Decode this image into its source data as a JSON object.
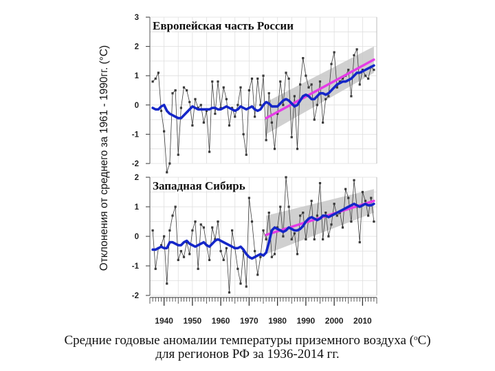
{
  "y_axis_label": "Отклонения от среднего за 1961 - 1990гг. (°C)",
  "caption": {
    "line1_before": "Средние годовые аномалии температуры приземного воздуха (",
    "degree": "o",
    "line1_after": "C)",
    "line2": "для регионов РФ за 1936-2014 гг."
  },
  "colors": {
    "anomaly_line": "#3a3a3a",
    "smoothed": "#1426c8",
    "trend": "#e53ce6",
    "confidence_band": "#c8c8c8",
    "grid": "#dedede"
  },
  "chart_data": [
    {
      "type": "line",
      "title": "Европейская часть России",
      "xlabel": "",
      "ylabel": "Отклонения от среднего за 1961 - 1990гг. (°C)",
      "xlim": [
        1935,
        2015
      ],
      "ylim": [
        -2,
        3
      ],
      "y_ticks": [
        -2,
        -1,
        0,
        1,
        2,
        3
      ],
      "y_tick_labels": [
        "-2",
        "-1",
        "0",
        "1",
        "2",
        "3"
      ],
      "x": [
        1936,
        1937,
        1938,
        1939,
        1940,
        1941,
        1942,
        1943,
        1944,
        1945,
        1946,
        1947,
        1948,
        1949,
        1950,
        1951,
        1952,
        1953,
        1954,
        1955,
        1956,
        1957,
        1958,
        1959,
        1960,
        1961,
        1962,
        1963,
        1964,
        1965,
        1966,
        1967,
        1968,
        1969,
        1970,
        1971,
        1972,
        1973,
        1974,
        1975,
        1976,
        1977,
        1978,
        1979,
        1980,
        1981,
        1982,
        1983,
        1984,
        1985,
        1986,
        1987,
        1988,
        1989,
        1990,
        1991,
        1992,
        1993,
        1994,
        1995,
        1996,
        1997,
        1998,
        1999,
        2000,
        2001,
        2002,
        2003,
        2004,
        2005,
        2006,
        2007,
        2008,
        2009,
        2010,
        2011,
        2012,
        2013,
        2014
      ],
      "series": [
        {
          "name": "annual_anomaly",
          "values": [
            0.8,
            0.9,
            1.1,
            -0.2,
            -0.9,
            -2.3,
            -2.0,
            0.4,
            0.5,
            -1.7,
            -0.1,
            0.6,
            0.5,
            0.1,
            -0.7,
            0.2,
            -0.1,
            0.0,
            -0.6,
            -0.2,
            -1.6,
            0.8,
            -0.3,
            0.8,
            -0.1,
            0.6,
            0.2,
            -0.7,
            -0.1,
            -0.4,
            0.0,
            0.6,
            -1.0,
            -1.7,
            0.5,
            0.9,
            -0.4,
            0.9,
            0.0,
            1.0,
            -1.2,
            0.4,
            -0.6,
            -1.5,
            -0.3,
            0.8,
            0.0,
            1.1,
            0.9,
            -1.1,
            0.3,
            -1.5,
            0.7,
            1.6,
            1.0,
            0.6,
            0.7,
            -0.5,
            0.0,
            0.8,
            -0.6,
            0.2,
            0.3,
            1.4,
            1.8,
            0.6,
            0.8,
            0.9,
            1.0,
            1.2,
            0.3,
            1.7,
            1.9,
            0.7,
            1.2,
            1.0,
            0.9,
            1.3,
            1.2
          ]
        },
        {
          "name": "smoothed",
          "values": [
            -0.1,
            -0.15,
            -0.15,
            -0.05,
            0.0,
            -0.2,
            -0.3,
            -0.35,
            -0.4,
            -0.45,
            -0.45,
            -0.35,
            -0.25,
            -0.15,
            -0.05,
            -0.1,
            -0.15,
            -0.15,
            -0.15,
            -0.15,
            -0.15,
            -0.1,
            -0.1,
            -0.15,
            -0.15,
            -0.1,
            -0.05,
            -0.1,
            -0.15,
            -0.2,
            -0.15,
            -0.05,
            -0.1,
            -0.15,
            -0.1,
            -0.05,
            -0.15,
            -0.2,
            -0.15,
            0.0,
            0.1,
            0.05,
            -0.05,
            -0.05,
            -0.05,
            0.05,
            0.15,
            0.2,
            0.15,
            0.05,
            -0.05,
            0.0,
            0.15,
            0.3,
            0.35,
            0.3,
            0.2,
            0.2,
            0.3,
            0.4,
            0.4,
            0.35,
            0.4,
            0.5,
            0.6,
            0.7,
            0.75,
            0.8,
            0.8,
            0.85,
            0.9,
            1.0,
            1.1,
            1.1,
            1.15,
            1.2,
            1.25,
            1.3,
            1.35
          ]
        },
        {
          "name": "linear_trend",
          "x": [
            1976,
            2014
          ],
          "values": [
            -0.45,
            1.55
          ]
        },
        {
          "name": "confidence_band",
          "x": [
            1976,
            2014
          ],
          "upper": [
            0.1,
            2.0
          ],
          "lower": [
            -1.0,
            1.1
          ]
        }
      ]
    },
    {
      "type": "line",
      "title": "Западная Сибирь",
      "xlabel": "",
      "ylabel": "Отклонения от среднего за 1961 - 1990гг. (°C)",
      "xlim": [
        1935,
        2015
      ],
      "ylim": [
        -2,
        2
      ],
      "y_ticks": [
        -2,
        -1,
        0,
        1,
        2
      ],
      "y_tick_labels": [
        "-2",
        "-1",
        "0",
        "1",
        "2"
      ],
      "x_ticks": [
        1940,
        1950,
        1960,
        1970,
        1980,
        1990,
        2000,
        2010
      ],
      "x_tick_labels": [
        "1940",
        "1950",
        "1960",
        "1970",
        "1980",
        "1990",
        "2000",
        "2010"
      ],
      "x": [
        1936,
        1937,
        1938,
        1939,
        1940,
        1941,
        1942,
        1943,
        1944,
        1945,
        1946,
        1947,
        1948,
        1949,
        1950,
        1951,
        1952,
        1953,
        1954,
        1955,
        1956,
        1957,
        1958,
        1959,
        1960,
        1961,
        1962,
        1963,
        1964,
        1965,
        1966,
        1967,
        1968,
        1969,
        1970,
        1971,
        1972,
        1973,
        1974,
        1975,
        1976,
        1977,
        1978,
        1979,
        1980,
        1981,
        1982,
        1983,
        1984,
        1985,
        1986,
        1987,
        1988,
        1989,
        1990,
        1991,
        1992,
        1993,
        1994,
        1995,
        1996,
        1997,
        1998,
        1999,
        2000,
        2001,
        2002,
        2003,
        2004,
        2005,
        2006,
        2007,
        2008,
        2009,
        2010,
        2011,
        2012,
        2013,
        2014
      ],
      "series": [
        {
          "name": "annual_anomaly",
          "values": [
            0.2,
            -1.1,
            -0.4,
            -0.3,
            0.0,
            -1.6,
            0.2,
            0.7,
            1.0,
            -0.8,
            -0.5,
            -0.7,
            -0.2,
            -0.6,
            0.2,
            0.5,
            -1.1,
            0.4,
            0.3,
            -0.3,
            -0.8,
            0.3,
            -0.1,
            0.5,
            -0.5,
            -0.8,
            -0.4,
            -1.9,
            0.2,
            -0.4,
            -1.1,
            -1.6,
            -0.5,
            -1.7,
            1.3,
            0.5,
            -0.5,
            -1.3,
            -0.7,
            0.2,
            -0.1,
            0.8,
            -0.7,
            -0.6,
            0.3,
            1.0,
            0.0,
            2.0,
            1.0,
            -0.1,
            0.1,
            -0.6,
            0.7,
            0.8,
            -0.1,
            0.6,
            1.2,
            -0.1,
            0.7,
            1.8,
            -0.1,
            0.8,
            0.0,
            0.4,
            1.1,
            0.7,
            0.8,
            0.3,
            1.6,
            1.3,
            0.5,
            1.9,
            1.0,
            -0.2,
            1.5,
            1.2,
            0.7,
            1.3,
            0.5
          ]
        },
        {
          "name": "smoothed",
          "values": [
            -0.45,
            -0.45,
            -0.4,
            -0.35,
            -0.4,
            -0.4,
            -0.2,
            -0.2,
            -0.25,
            -0.3,
            -0.3,
            -0.2,
            -0.15,
            -0.25,
            -0.3,
            -0.35,
            -0.3,
            -0.25,
            -0.2,
            -0.3,
            -0.35,
            -0.25,
            -0.15,
            -0.1,
            -0.15,
            -0.2,
            -0.25,
            -0.3,
            -0.35,
            -0.4,
            -0.4,
            -0.35,
            -0.45,
            -0.6,
            -0.7,
            -0.75,
            -0.7,
            -0.65,
            -0.6,
            -0.65,
            -0.55,
            -0.2,
            0.2,
            0.3,
            0.25,
            0.2,
            0.15,
            0.2,
            0.3,
            0.25,
            0.2,
            0.2,
            0.25,
            0.35,
            0.5,
            0.6,
            0.65,
            0.6,
            0.55,
            0.6,
            0.7,
            0.7,
            0.65,
            0.7,
            0.75,
            0.8,
            0.85,
            0.9,
            0.95,
            1.0,
            1.05,
            1.1,
            1.05,
            1.0,
            1.05,
            1.1,
            1.05,
            1.05,
            1.1
          ]
        },
        {
          "name": "linear_trend",
          "x": [
            1976,
            2014
          ],
          "values": [
            0.05,
            1.2
          ]
        },
        {
          "name": "confidence_band",
          "x": [
            1976,
            2014
          ],
          "upper": [
            0.7,
            1.6
          ],
          "lower": [
            -0.6,
            0.8
          ]
        }
      ]
    }
  ]
}
